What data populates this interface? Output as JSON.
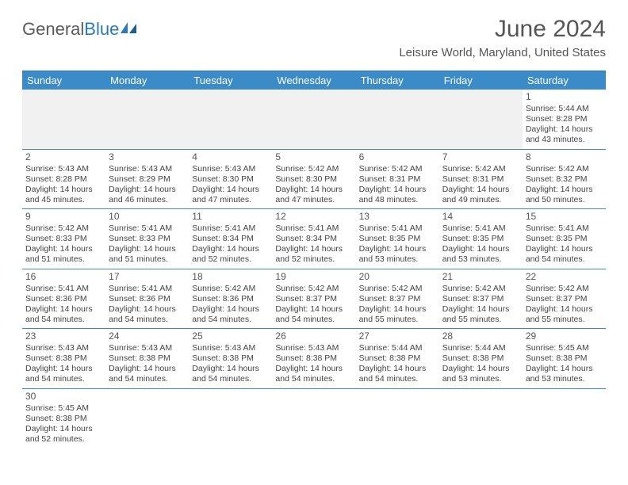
{
  "logo": {
    "text1": "General",
    "text2": "Blue"
  },
  "title": "June 2024",
  "subtitle": "Leisure World, Maryland, United States",
  "colors": {
    "accent": "#3b8bc9",
    "text": "#444444",
    "header_text": "#555555"
  },
  "day_headers": [
    "Sunday",
    "Monday",
    "Tuesday",
    "Wednesday",
    "Thursday",
    "Friday",
    "Saturday"
  ],
  "weeks": [
    [
      null,
      null,
      null,
      null,
      null,
      null,
      {
        "n": "1",
        "sr": "Sunrise: 5:44 AM",
        "ss": "Sunset: 8:28 PM",
        "dl": "Daylight: 14 hours and 43 minutes."
      }
    ],
    [
      {
        "n": "2",
        "sr": "Sunrise: 5:43 AM",
        "ss": "Sunset: 8:28 PM",
        "dl": "Daylight: 14 hours and 45 minutes."
      },
      {
        "n": "3",
        "sr": "Sunrise: 5:43 AM",
        "ss": "Sunset: 8:29 PM",
        "dl": "Daylight: 14 hours and 46 minutes."
      },
      {
        "n": "4",
        "sr": "Sunrise: 5:43 AM",
        "ss": "Sunset: 8:30 PM",
        "dl": "Daylight: 14 hours and 47 minutes."
      },
      {
        "n": "5",
        "sr": "Sunrise: 5:42 AM",
        "ss": "Sunset: 8:30 PM",
        "dl": "Daylight: 14 hours and 47 minutes."
      },
      {
        "n": "6",
        "sr": "Sunrise: 5:42 AM",
        "ss": "Sunset: 8:31 PM",
        "dl": "Daylight: 14 hours and 48 minutes."
      },
      {
        "n": "7",
        "sr": "Sunrise: 5:42 AM",
        "ss": "Sunset: 8:31 PM",
        "dl": "Daylight: 14 hours and 49 minutes."
      },
      {
        "n": "8",
        "sr": "Sunrise: 5:42 AM",
        "ss": "Sunset: 8:32 PM",
        "dl": "Daylight: 14 hours and 50 minutes."
      }
    ],
    [
      {
        "n": "9",
        "sr": "Sunrise: 5:42 AM",
        "ss": "Sunset: 8:33 PM",
        "dl": "Daylight: 14 hours and 51 minutes."
      },
      {
        "n": "10",
        "sr": "Sunrise: 5:41 AM",
        "ss": "Sunset: 8:33 PM",
        "dl": "Daylight: 14 hours and 51 minutes."
      },
      {
        "n": "11",
        "sr": "Sunrise: 5:41 AM",
        "ss": "Sunset: 8:34 PM",
        "dl": "Daylight: 14 hours and 52 minutes."
      },
      {
        "n": "12",
        "sr": "Sunrise: 5:41 AM",
        "ss": "Sunset: 8:34 PM",
        "dl": "Daylight: 14 hours and 52 minutes."
      },
      {
        "n": "13",
        "sr": "Sunrise: 5:41 AM",
        "ss": "Sunset: 8:35 PM",
        "dl": "Daylight: 14 hours and 53 minutes."
      },
      {
        "n": "14",
        "sr": "Sunrise: 5:41 AM",
        "ss": "Sunset: 8:35 PM",
        "dl": "Daylight: 14 hours and 53 minutes."
      },
      {
        "n": "15",
        "sr": "Sunrise: 5:41 AM",
        "ss": "Sunset: 8:35 PM",
        "dl": "Daylight: 14 hours and 54 minutes."
      }
    ],
    [
      {
        "n": "16",
        "sr": "Sunrise: 5:41 AM",
        "ss": "Sunset: 8:36 PM",
        "dl": "Daylight: 14 hours and 54 minutes."
      },
      {
        "n": "17",
        "sr": "Sunrise: 5:41 AM",
        "ss": "Sunset: 8:36 PM",
        "dl": "Daylight: 14 hours and 54 minutes."
      },
      {
        "n": "18",
        "sr": "Sunrise: 5:42 AM",
        "ss": "Sunset: 8:36 PM",
        "dl": "Daylight: 14 hours and 54 minutes."
      },
      {
        "n": "19",
        "sr": "Sunrise: 5:42 AM",
        "ss": "Sunset: 8:37 PM",
        "dl": "Daylight: 14 hours and 54 minutes."
      },
      {
        "n": "20",
        "sr": "Sunrise: 5:42 AM",
        "ss": "Sunset: 8:37 PM",
        "dl": "Daylight: 14 hours and 55 minutes."
      },
      {
        "n": "21",
        "sr": "Sunrise: 5:42 AM",
        "ss": "Sunset: 8:37 PM",
        "dl": "Daylight: 14 hours and 55 minutes."
      },
      {
        "n": "22",
        "sr": "Sunrise: 5:42 AM",
        "ss": "Sunset: 8:37 PM",
        "dl": "Daylight: 14 hours and 55 minutes."
      }
    ],
    [
      {
        "n": "23",
        "sr": "Sunrise: 5:43 AM",
        "ss": "Sunset: 8:38 PM",
        "dl": "Daylight: 14 hours and 54 minutes."
      },
      {
        "n": "24",
        "sr": "Sunrise: 5:43 AM",
        "ss": "Sunset: 8:38 PM",
        "dl": "Daylight: 14 hours and 54 minutes."
      },
      {
        "n": "25",
        "sr": "Sunrise: 5:43 AM",
        "ss": "Sunset: 8:38 PM",
        "dl": "Daylight: 14 hours and 54 minutes."
      },
      {
        "n": "26",
        "sr": "Sunrise: 5:43 AM",
        "ss": "Sunset: 8:38 PM",
        "dl": "Daylight: 14 hours and 54 minutes."
      },
      {
        "n": "27",
        "sr": "Sunrise: 5:44 AM",
        "ss": "Sunset: 8:38 PM",
        "dl": "Daylight: 14 hours and 54 minutes."
      },
      {
        "n": "28",
        "sr": "Sunrise: 5:44 AM",
        "ss": "Sunset: 8:38 PM",
        "dl": "Daylight: 14 hours and 53 minutes."
      },
      {
        "n": "29",
        "sr": "Sunrise: 5:45 AM",
        "ss": "Sunset: 8:38 PM",
        "dl": "Daylight: 14 hours and 53 minutes."
      }
    ],
    [
      {
        "n": "30",
        "sr": "Sunrise: 5:45 AM",
        "ss": "Sunset: 8:38 PM",
        "dl": "Daylight: 14 hours and 52 minutes."
      },
      null,
      null,
      null,
      null,
      null,
      null
    ]
  ]
}
